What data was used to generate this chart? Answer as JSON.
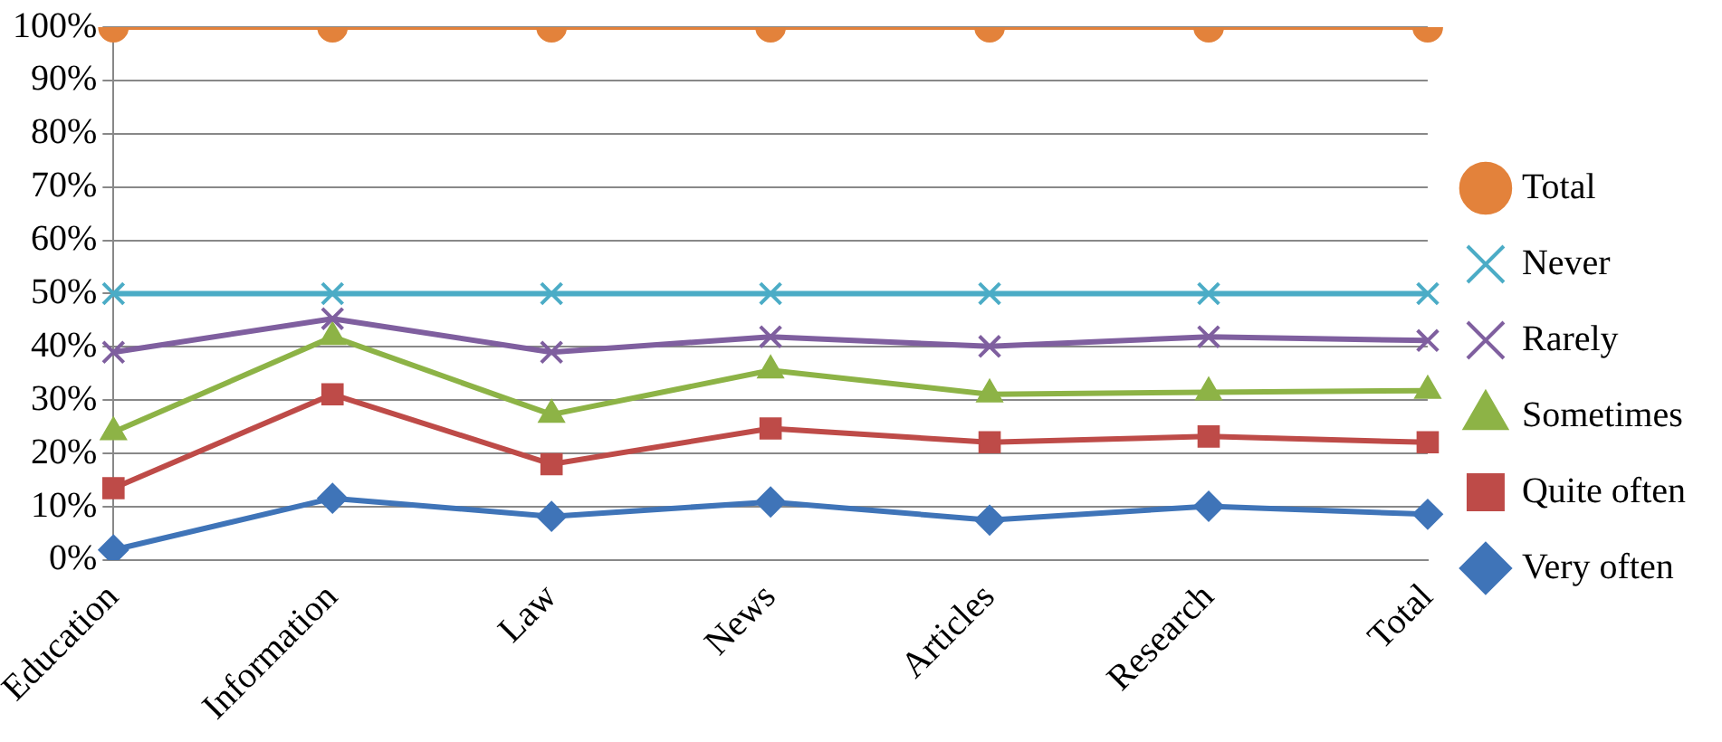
{
  "chart_data": {
    "type": "line",
    "categories": [
      "Education",
      "Information",
      "Law",
      "News",
      "Articles",
      "Research",
      "Total"
    ],
    "ylim": [
      0,
      100
    ],
    "yticks": [
      {
        "value": 0,
        "label": "0%"
      },
      {
        "value": 10,
        "label": "10%"
      },
      {
        "value": 20,
        "label": "20%"
      },
      {
        "value": 30,
        "label": "30%"
      },
      {
        "value": 40,
        "label": "40%"
      },
      {
        "value": 50,
        "label": "50%"
      },
      {
        "value": 60,
        "label": "60%"
      },
      {
        "value": 70,
        "label": "70%"
      },
      {
        "value": 80,
        "label": "80%"
      },
      {
        "value": 90,
        "label": "90%"
      },
      {
        "value": 100,
        "label": "100%"
      }
    ],
    "grid": "y",
    "legend": "right",
    "line_style": "solid",
    "series": [
      {
        "name": "Total",
        "color": "#e3823b",
        "marker": "circle",
        "values": [
          100,
          100,
          100,
          100,
          100,
          100,
          100
        ]
      },
      {
        "name": "Never",
        "color": "#4bacc6",
        "marker": "cross",
        "values": [
          50,
          50,
          50,
          50,
          50,
          50,
          50
        ]
      },
      {
        "name": "Rarely",
        "color": "#7f5f9f",
        "marker": "cross",
        "values": [
          39,
          45.3,
          39,
          41.9,
          40.1,
          41.9,
          41.2
        ]
      },
      {
        "name": "Sometimes",
        "color": "#8db346",
        "marker": "triangle",
        "values": [
          24,
          41.9,
          27.3,
          35.6,
          31.1,
          31.5,
          31.8
        ]
      },
      {
        "name": "Quite often",
        "color": "#be4b48",
        "marker": "square",
        "values": [
          13.5,
          31.1,
          18,
          24.7,
          22.1,
          23.2,
          22.1
        ]
      },
      {
        "name": "Very often",
        "color": "#3f74b8",
        "marker": "diamond",
        "values": [
          1.9,
          11.6,
          8.2,
          10.9,
          7.5,
          10.1,
          8.6
        ]
      }
    ]
  }
}
